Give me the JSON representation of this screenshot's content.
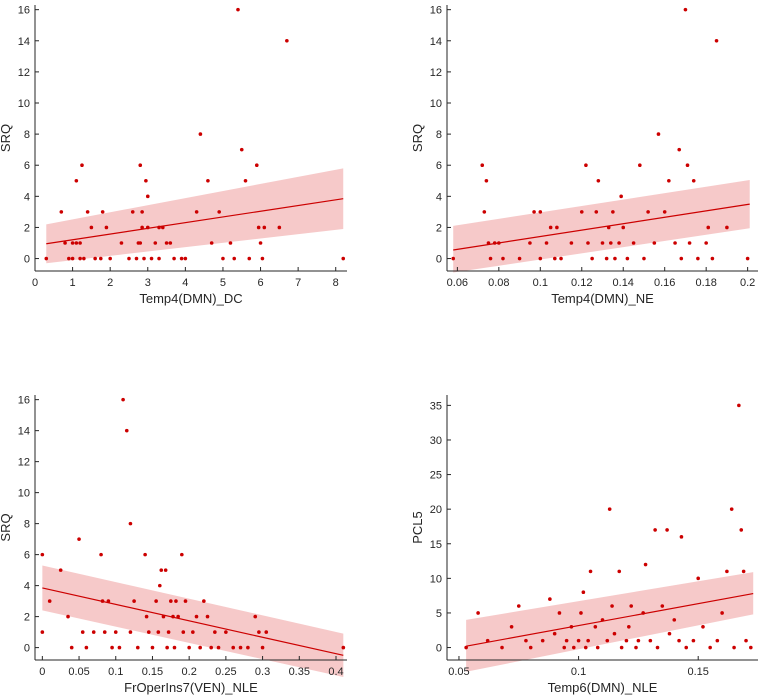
{
  "colors": {
    "points": "#cc0000",
    "line": "#cc0000",
    "band": "#f4bcbc",
    "axis": "#262626"
  },
  "chart_data": [
    {
      "type": "scatter",
      "xlabel": "Temp4(DMN)_DC",
      "ylabel": "SRQ",
      "xlim": [
        0,
        8.3
      ],
      "ylim": [
        -0.8,
        16.3
      ],
      "xticks": [
        "0",
        "1",
        "2",
        "3",
        "4",
        "5",
        "6",
        "7",
        "8"
      ],
      "yticks": [
        "0",
        "2",
        "4",
        "6",
        "8",
        "10",
        "12",
        "14",
        "16"
      ],
      "fit": {
        "x": [
          0.3,
          8.2
        ],
        "y": [
          0.95,
          3.85
        ],
        "lower": [
          -0.3,
          1.9
        ],
        "upper": [
          2.2,
          5.8
        ]
      },
      "points": [
        [
          0.3,
          0
        ],
        [
          0.7,
          3
        ],
        [
          0.8,
          1
        ],
        [
          0.9,
          0
        ],
        [
          1.0,
          1
        ],
        [
          1.0,
          0
        ],
        [
          1.1,
          1
        ],
        [
          1.1,
          5
        ],
        [
          1.2,
          1
        ],
        [
          1.2,
          0
        ],
        [
          1.25,
          6
        ],
        [
          1.3,
          0
        ],
        [
          1.4,
          3
        ],
        [
          1.5,
          2
        ],
        [
          1.6,
          0
        ],
        [
          1.75,
          0
        ],
        [
          1.8,
          3
        ],
        [
          1.9,
          2
        ],
        [
          2.0,
          0
        ],
        [
          2.3,
          1
        ],
        [
          2.5,
          0
        ],
        [
          2.6,
          3
        ],
        [
          2.7,
          0
        ],
        [
          2.75,
          1
        ],
        [
          2.8,
          6
        ],
        [
          2.8,
          1
        ],
        [
          2.85,
          3
        ],
        [
          2.85,
          2
        ],
        [
          2.9,
          0
        ],
        [
          2.95,
          5
        ],
        [
          3.0,
          4
        ],
        [
          3.0,
          2
        ],
        [
          3.1,
          0
        ],
        [
          3.2,
          1
        ],
        [
          3.3,
          2
        ],
        [
          3.3,
          0
        ],
        [
          3.4,
          2
        ],
        [
          3.5,
          1
        ],
        [
          3.6,
          1
        ],
        [
          3.7,
          0
        ],
        [
          3.9,
          0
        ],
        [
          4.0,
          0
        ],
        [
          4.3,
          3
        ],
        [
          4.4,
          8
        ],
        [
          4.6,
          5
        ],
        [
          4.7,
          1
        ],
        [
          4.9,
          3
        ],
        [
          5.0,
          0
        ],
        [
          5.2,
          1
        ],
        [
          5.3,
          0
        ],
        [
          5.4,
          16
        ],
        [
          5.5,
          7
        ],
        [
          5.6,
          5
        ],
        [
          5.7,
          0
        ],
        [
          5.9,
          6
        ],
        [
          5.95,
          2
        ],
        [
          6.0,
          1
        ],
        [
          6.05,
          0
        ],
        [
          6.1,
          2
        ],
        [
          6.5,
          2
        ],
        [
          6.7,
          14
        ],
        [
          8.2,
          0
        ]
      ]
    },
    {
      "type": "scatter",
      "xlabel": "Temp4(DMN)_NE",
      "ylabel": "SRQ",
      "xlim": [
        0.055,
        0.205
      ],
      "ylim": [
        -0.8,
        16.3
      ],
      "xticks": [
        "0.06",
        "0.08",
        "0.1",
        "0.12",
        "0.14",
        "0.16",
        "0.18",
        "0.2"
      ],
      "xtickvals": [
        0.06,
        0.08,
        0.1,
        0.12,
        0.14,
        0.16,
        0.18,
        0.2
      ],
      "yticks": [
        "0",
        "2",
        "4",
        "6",
        "8",
        "10",
        "12",
        "14",
        "16"
      ],
      "fit": {
        "x": [
          0.058,
          0.201
        ],
        "y": [
          0.55,
          3.5
        ],
        "lower": [
          -0.9,
          1.95
        ],
        "upper": [
          2.1,
          5.05
        ]
      },
      "points": [
        [
          0.058,
          0
        ],
        [
          0.072,
          6
        ],
        [
          0.073,
          3
        ],
        [
          0.074,
          5
        ],
        [
          0.075,
          1
        ],
        [
          0.076,
          0
        ],
        [
          0.078,
          1
        ],
        [
          0.08,
          1
        ],
        [
          0.082,
          0
        ],
        [
          0.09,
          0
        ],
        [
          0.095,
          1
        ],
        [
          0.097,
          3
        ],
        [
          0.1,
          3
        ],
        [
          0.1,
          0
        ],
        [
          0.103,
          1
        ],
        [
          0.105,
          2
        ],
        [
          0.107,
          0
        ],
        [
          0.108,
          2
        ],
        [
          0.11,
          0
        ],
        [
          0.115,
          1
        ],
        [
          0.12,
          3
        ],
        [
          0.122,
          6
        ],
        [
          0.123,
          1
        ],
        [
          0.125,
          0
        ],
        [
          0.127,
          3
        ],
        [
          0.128,
          5
        ],
        [
          0.13,
          1
        ],
        [
          0.132,
          0
        ],
        [
          0.133,
          2
        ],
        [
          0.134,
          1
        ],
        [
          0.135,
          3
        ],
        [
          0.136,
          0
        ],
        [
          0.138,
          1
        ],
        [
          0.139,
          4
        ],
        [
          0.14,
          2
        ],
        [
          0.142,
          0
        ],
        [
          0.145,
          1
        ],
        [
          0.148,
          6
        ],
        [
          0.15,
          0
        ],
        [
          0.152,
          3
        ],
        [
          0.155,
          1
        ],
        [
          0.157,
          8
        ],
        [
          0.16,
          3
        ],
        [
          0.162,
          5
        ],
        [
          0.165,
          1
        ],
        [
          0.167,
          7
        ],
        [
          0.168,
          0
        ],
        [
          0.17,
          16
        ],
        [
          0.171,
          6
        ],
        [
          0.172,
          1
        ],
        [
          0.174,
          5
        ],
        [
          0.176,
          0
        ],
        [
          0.18,
          1
        ],
        [
          0.181,
          2
        ],
        [
          0.183,
          0
        ],
        [
          0.185,
          14
        ],
        [
          0.19,
          2
        ],
        [
          0.2,
          0
        ]
      ]
    },
    {
      "type": "scatter",
      "xlabel": "FrOperIns7(VEN)_NLE",
      "ylabel": "SRQ",
      "xlim": [
        -0.01,
        0.415
      ],
      "ylim": [
        -0.8,
        16.3
      ],
      "xticks": [
        "0",
        "0.05",
        "0.1",
        "0.15",
        "0.2",
        "0.25",
        "0.3",
        "0.35",
        "0.4"
      ],
      "xtickvals": [
        0,
        0.05,
        0.1,
        0.15,
        0.2,
        0.25,
        0.3,
        0.35,
        0.4
      ],
      "yticks": [
        "0",
        "2",
        "4",
        "6",
        "8",
        "10",
        "12",
        "14",
        "16"
      ],
      "fit": {
        "x": [
          0.0,
          0.41
        ],
        "y": [
          3.85,
          -0.5
        ],
        "lower": [
          2.4,
          -1.9
        ],
        "upper": [
          5.3,
          0.9
        ]
      },
      "points": [
        [
          0.0,
          6
        ],
        [
          0.0,
          1
        ],
        [
          0.01,
          3
        ],
        [
          0.025,
          5
        ],
        [
          0.035,
          2
        ],
        [
          0.04,
          0
        ],
        [
          0.05,
          7
        ],
        [
          0.055,
          1
        ],
        [
          0.06,
          0
        ],
        [
          0.07,
          1
        ],
        [
          0.08,
          6
        ],
        [
          0.082,
          3
        ],
        [
          0.085,
          1
        ],
        [
          0.09,
          3
        ],
        [
          0.095,
          0
        ],
        [
          0.1,
          1
        ],
        [
          0.105,
          0
        ],
        [
          0.11,
          16
        ],
        [
          0.115,
          14
        ],
        [
          0.12,
          8
        ],
        [
          0.12,
          1
        ],
        [
          0.125,
          3
        ],
        [
          0.13,
          0
        ],
        [
          0.14,
          6
        ],
        [
          0.142,
          2
        ],
        [
          0.145,
          1
        ],
        [
          0.15,
          0
        ],
        [
          0.155,
          3
        ],
        [
          0.158,
          1
        ],
        [
          0.16,
          4
        ],
        [
          0.162,
          5
        ],
        [
          0.165,
          2
        ],
        [
          0.168,
          5
        ],
        [
          0.17,
          0
        ],
        [
          0.172,
          1
        ],
        [
          0.175,
          3
        ],
        [
          0.178,
          2
        ],
        [
          0.18,
          0
        ],
        [
          0.182,
          3
        ],
        [
          0.185,
          2
        ],
        [
          0.19,
          6
        ],
        [
          0.192,
          1
        ],
        [
          0.195,
          3
        ],
        [
          0.2,
          0
        ],
        [
          0.205,
          1
        ],
        [
          0.21,
          2
        ],
        [
          0.215,
          0
        ],
        [
          0.22,
          3
        ],
        [
          0.225,
          2
        ],
        [
          0.23,
          0
        ],
        [
          0.235,
          1
        ],
        [
          0.24,
          0
        ],
        [
          0.25,
          1
        ],
        [
          0.26,
          0
        ],
        [
          0.27,
          0
        ],
        [
          0.28,
          0
        ],
        [
          0.29,
          2
        ],
        [
          0.295,
          1
        ],
        [
          0.3,
          0
        ],
        [
          0.305,
          1
        ],
        [
          0.41,
          0
        ]
      ]
    },
    {
      "type": "scatter",
      "xlabel": "Temp6(DMN)_NLE",
      "ylabel": "PCL5",
      "xlim": [
        0.045,
        0.175
      ],
      "ylim": [
        -1.8,
        36.5
      ],
      "xticks": [
        "0.05",
        "0.1",
        "0.15"
      ],
      "xtickvals": [
        0.05,
        0.1,
        0.15
      ],
      "yticks": [
        "0",
        "5",
        "10",
        "15",
        "20",
        "25",
        "30",
        "35"
      ],
      "fit": {
        "x": [
          0.053,
          0.173
        ],
        "y": [
          0.2,
          7.8
        ],
        "lower": [
          -3.5,
          4.8
        ],
        "upper": [
          4.0,
          10.9
        ]
      },
      "points": [
        [
          0.053,
          0
        ],
        [
          0.058,
          5
        ],
        [
          0.062,
          1
        ],
        [
          0.068,
          0
        ],
        [
          0.072,
          3
        ],
        [
          0.075,
          6
        ],
        [
          0.078,
          1
        ],
        [
          0.08,
          0
        ],
        [
          0.085,
          1
        ],
        [
          0.088,
          7
        ],
        [
          0.09,
          2
        ],
        [
          0.092,
          5
        ],
        [
          0.094,
          0
        ],
        [
          0.095,
          1
        ],
        [
          0.097,
          3
        ],
        [
          0.098,
          0
        ],
        [
          0.1,
          1
        ],
        [
          0.101,
          5
        ],
        [
          0.102,
          8
        ],
        [
          0.103,
          0
        ],
        [
          0.104,
          1
        ],
        [
          0.105,
          11
        ],
        [
          0.107,
          3
        ],
        [
          0.108,
          0
        ],
        [
          0.11,
          4
        ],
        [
          0.112,
          1
        ],
        [
          0.113,
          20
        ],
        [
          0.114,
          6
        ],
        [
          0.115,
          2
        ],
        [
          0.117,
          11
        ],
        [
          0.118,
          0
        ],
        [
          0.12,
          1
        ],
        [
          0.121,
          3
        ],
        [
          0.122,
          6
        ],
        [
          0.124,
          0
        ],
        [
          0.125,
          1
        ],
        [
          0.127,
          5
        ],
        [
          0.128,
          12
        ],
        [
          0.13,
          1
        ],
        [
          0.132,
          17
        ],
        [
          0.133,
          0
        ],
        [
          0.135,
          6
        ],
        [
          0.137,
          17
        ],
        [
          0.138,
          2
        ],
        [
          0.14,
          4
        ],
        [
          0.142,
          1
        ],
        [
          0.143,
          16
        ],
        [
          0.145,
          0
        ],
        [
          0.148,
          1
        ],
        [
          0.15,
          10
        ],
        [
          0.152,
          3
        ],
        [
          0.155,
          0
        ],
        [
          0.158,
          1
        ],
        [
          0.16,
          5
        ],
        [
          0.162,
          11
        ],
        [
          0.164,
          20
        ],
        [
          0.165,
          0
        ],
        [
          0.167,
          35
        ],
        [
          0.168,
          17
        ],
        [
          0.169,
          11
        ],
        [
          0.17,
          1
        ],
        [
          0.172,
          0
        ]
      ]
    }
  ]
}
